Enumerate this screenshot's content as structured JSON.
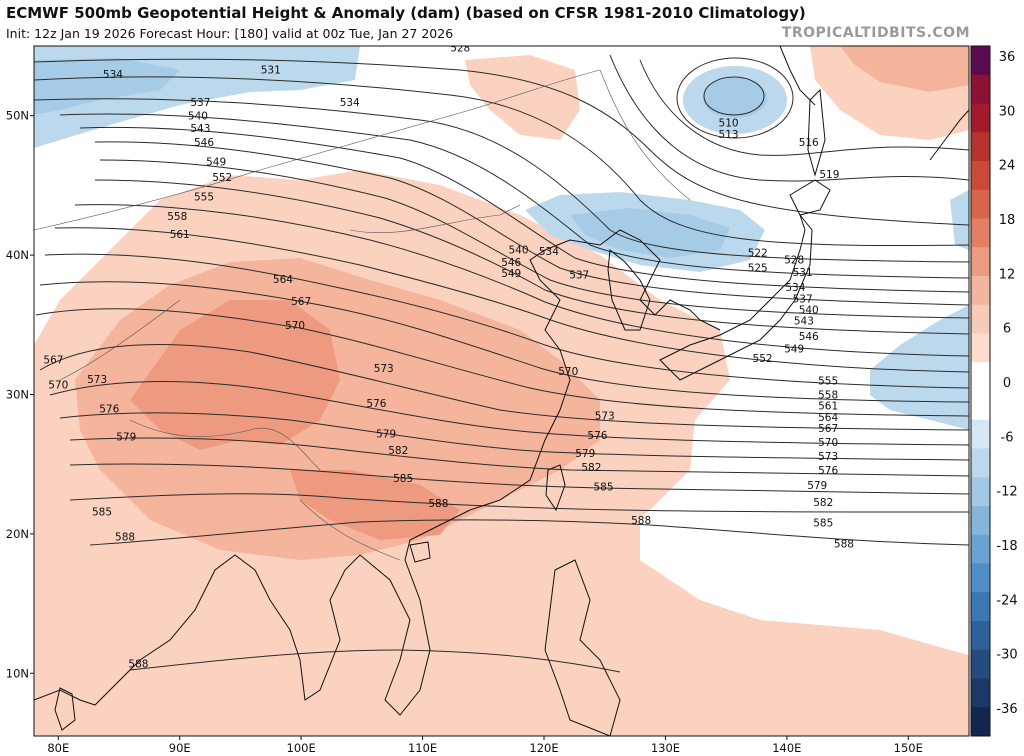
{
  "header": {
    "title": "ECMWF 500mb Geopotential Height & Anomaly (dam) (based on CFSR 1981-2010 Climatology)",
    "subtitle": "Init: 12z Jan 19 2026   Forecast Hour: [180]   valid at 00z Tue, Jan 27 2026",
    "credit": "TROPICALTIDBITS.COM"
  },
  "map": {
    "lon_range": [
      78,
      155
    ],
    "lat_range": [
      5.5,
      55
    ],
    "lon_ticks": [
      {
        "lon": 80,
        "label": "80E"
      },
      {
        "lon": 90,
        "label": "90E"
      },
      {
        "lon": 100,
        "label": "100E"
      },
      {
        "lon": 110,
        "label": "110E"
      },
      {
        "lon": 120,
        "label": "120E"
      },
      {
        "lon": 130,
        "label": "130E"
      },
      {
        "lon": 140,
        "label": "140E"
      },
      {
        "lon": 150,
        "label": "150E"
      }
    ],
    "lat_ticks": [
      {
        "lat": 10,
        "label": "10N"
      },
      {
        "lat": 20,
        "label": "20N"
      },
      {
        "lat": 30,
        "label": "30N"
      },
      {
        "lat": 40,
        "label": "40N"
      },
      {
        "lat": 50,
        "label": "50N"
      }
    ],
    "colors": {
      "pos_light": "#fbd2bf",
      "pos_mid": "#f5b49c",
      "pos_strong": "#ee9a80",
      "neg_light": "#bcd8ec",
      "neg_mid": "#a6cbe6",
      "contour": "#2b2b2b",
      "coast": "#111111"
    }
  },
  "colorbar": {
    "ticks": [
      "36",
      "30",
      "24",
      "18",
      "12",
      "6",
      "0",
      "-6",
      "-12",
      "-18",
      "-24",
      "-30",
      "-36"
    ],
    "colors": [
      "#5c0a4f",
      "#8b1233",
      "#a31b2b",
      "#b8322c",
      "#c94a36",
      "#d8644a",
      "#e37f62",
      "#ec9b80",
      "#f3b59e",
      "#f8cbb8",
      "#fbdccd",
      "#ffffff",
      "#ffffff",
      "#d6e6f3",
      "#bcd8ec",
      "#a3c8e5",
      "#86b5dc",
      "#6aa2d2",
      "#4f8ec6",
      "#3b77b2",
      "#2e6099",
      "#234b80",
      "#1b3867",
      "#132650"
    ]
  },
  "contour_labels": [
    {
      "lon": 84.5,
      "lat": 53.0,
      "text": "534"
    },
    {
      "lon": 97.5,
      "lat": 53.3,
      "text": "531"
    },
    {
      "lon": 104.0,
      "lat": 51.0,
      "text": "534"
    },
    {
      "lon": 91.7,
      "lat": 51.0,
      "text": "537"
    },
    {
      "lon": 91.5,
      "lat": 50.0,
      "text": "540"
    },
    {
      "lon": 91.7,
      "lat": 49.1,
      "text": "543"
    },
    {
      "lon": 92.0,
      "lat": 48.1,
      "text": "546"
    },
    {
      "lon": 93.0,
      "lat": 46.7,
      "text": "549"
    },
    {
      "lon": 93.5,
      "lat": 45.6,
      "text": "552"
    },
    {
      "lon": 92.0,
      "lat": 44.2,
      "text": "555"
    },
    {
      "lon": 89.8,
      "lat": 42.8,
      "text": "558"
    },
    {
      "lon": 90.0,
      "lat": 41.5,
      "text": "561"
    },
    {
      "lon": 98.5,
      "lat": 38.3,
      "text": "564"
    },
    {
      "lon": 100.0,
      "lat": 36.7,
      "text": "567"
    },
    {
      "lon": 99.5,
      "lat": 35.0,
      "text": "570"
    },
    {
      "lon": 79.6,
      "lat": 32.5,
      "text": "567"
    },
    {
      "lon": 80.0,
      "lat": 30.7,
      "text": "570"
    },
    {
      "lon": 83.2,
      "lat": 31.1,
      "text": "573"
    },
    {
      "lon": 84.2,
      "lat": 29.0,
      "text": "576"
    },
    {
      "lon": 85.6,
      "lat": 27.0,
      "text": "579"
    },
    {
      "lon": 83.6,
      "lat": 21.6,
      "text": "585"
    },
    {
      "lon": 85.5,
      "lat": 19.8,
      "text": "588"
    },
    {
      "lon": 86.6,
      "lat": 10.7,
      "text": "588"
    },
    {
      "lon": 106.8,
      "lat": 31.9,
      "text": "573"
    },
    {
      "lon": 106.2,
      "lat": 29.4,
      "text": "576"
    },
    {
      "lon": 107.0,
      "lat": 27.2,
      "text": "579"
    },
    {
      "lon": 108.0,
      "lat": 26.0,
      "text": "582"
    },
    {
      "lon": 108.4,
      "lat": 24.0,
      "text": "585"
    },
    {
      "lon": 111.3,
      "lat": 22.2,
      "text": "588"
    },
    {
      "lon": 117.9,
      "lat": 40.4,
      "text": "540"
    },
    {
      "lon": 117.3,
      "lat": 39.5,
      "text": "546"
    },
    {
      "lon": 117.3,
      "lat": 38.7,
      "text": "549"
    },
    {
      "lon": 120.4,
      "lat": 40.3,
      "text": "534"
    },
    {
      "lon": 122.9,
      "lat": 38.6,
      "text": "537"
    },
    {
      "lon": 122.0,
      "lat": 31.7,
      "text": "570"
    },
    {
      "lon": 125.0,
      "lat": 28.5,
      "text": "573"
    },
    {
      "lon": 124.4,
      "lat": 27.1,
      "text": "576"
    },
    {
      "lon": 123.4,
      "lat": 25.8,
      "text": "579"
    },
    {
      "lon": 123.9,
      "lat": 24.8,
      "text": "582"
    },
    {
      "lon": 124.9,
      "lat": 23.4,
      "text": "585"
    },
    {
      "lon": 128.0,
      "lat": 21.0,
      "text": "588"
    },
    {
      "lon": 113.1,
      "lat": 54.9,
      "text": "528"
    },
    {
      "lon": 135.2,
      "lat": 49.5,
      "text": "510"
    },
    {
      "lon": 135.2,
      "lat": 48.7,
      "text": "513"
    },
    {
      "lon": 141.8,
      "lat": 48.1,
      "text": "516"
    },
    {
      "lon": 143.5,
      "lat": 45.8,
      "text": "519"
    },
    {
      "lon": 137.6,
      "lat": 40.2,
      "text": "522"
    },
    {
      "lon": 137.6,
      "lat": 39.1,
      "text": "525"
    },
    {
      "lon": 140.6,
      "lat": 39.7,
      "text": "528"
    },
    {
      "lon": 141.3,
      "lat": 38.8,
      "text": "531"
    },
    {
      "lon": 140.7,
      "lat": 37.7,
      "text": "534"
    },
    {
      "lon": 141.3,
      "lat": 36.9,
      "text": "537"
    },
    {
      "lon": 141.8,
      "lat": 36.1,
      "text": "540"
    },
    {
      "lon": 141.4,
      "lat": 35.3,
      "text": "543"
    },
    {
      "lon": 141.8,
      "lat": 34.2,
      "text": "546"
    },
    {
      "lon": 140.6,
      "lat": 33.3,
      "text": "549"
    },
    {
      "lon": 138.0,
      "lat": 32.6,
      "text": "552"
    },
    {
      "lon": 143.4,
      "lat": 31.0,
      "text": "555"
    },
    {
      "lon": 143.4,
      "lat": 30.0,
      "text": "558"
    },
    {
      "lon": 143.4,
      "lat": 29.2,
      "text": "561"
    },
    {
      "lon": 143.4,
      "lat": 28.4,
      "text": "564"
    },
    {
      "lon": 143.4,
      "lat": 27.6,
      "text": "567"
    },
    {
      "lon": 143.4,
      "lat": 26.6,
      "text": "570"
    },
    {
      "lon": 143.4,
      "lat": 25.6,
      "text": "573"
    },
    {
      "lon": 143.4,
      "lat": 24.6,
      "text": "576"
    },
    {
      "lon": 142.5,
      "lat": 23.5,
      "text": "579"
    },
    {
      "lon": 143.0,
      "lat": 22.3,
      "text": "582"
    },
    {
      "lon": 143.0,
      "lat": 20.8,
      "text": "585"
    },
    {
      "lon": 144.7,
      "lat": 19.3,
      "text": "588"
    }
  ]
}
